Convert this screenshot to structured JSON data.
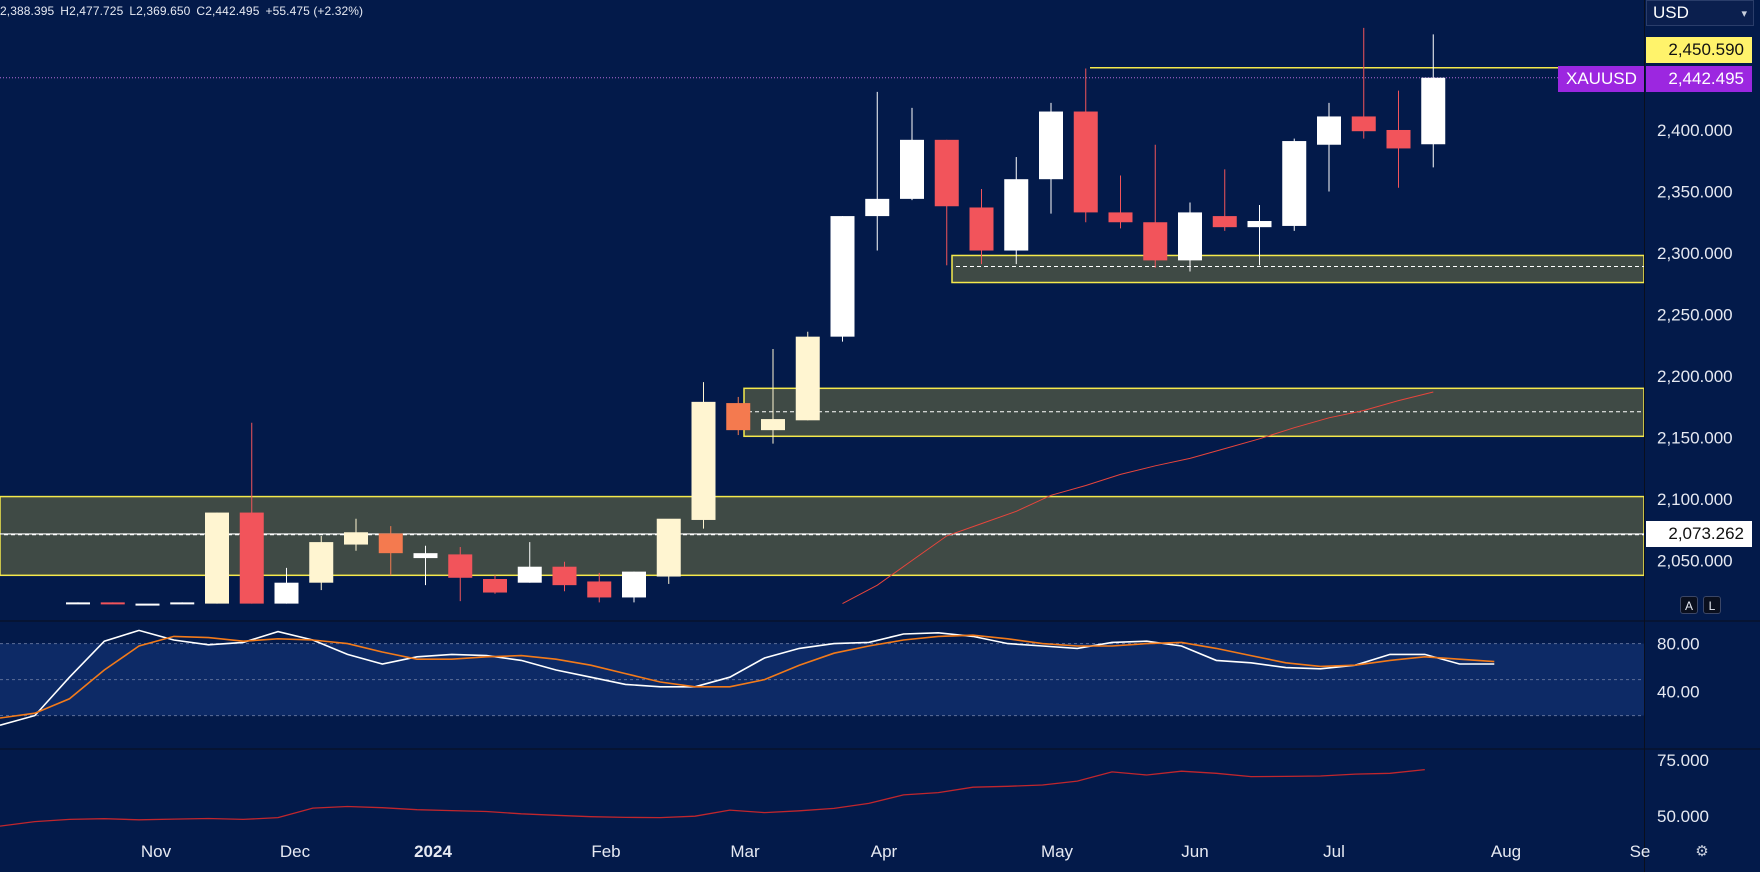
{
  "ohlc": {
    "open": "2,388.395",
    "high": "H2,477.725",
    "low": "L2,369.650",
    "close": "C2,442.495",
    "change": "+55.475 (+2.32%)"
  },
  "currency": {
    "selected": "USD"
  },
  "price_tags": {
    "resistance": "2,450.590",
    "symbol": "XAUUSD",
    "last": "2,442.495",
    "level": "2,073.262"
  },
  "axis_buttons": {
    "auto": "A",
    "log": "L"
  },
  "colors": {
    "background": "#031a4a",
    "up": "#ffffff",
    "up_highlight": "#fff5d1",
    "down": "#f2545b",
    "down_highlight": "#f47a4f",
    "zone_fill": "#3f4a45",
    "zone_border": "#f5e94c",
    "ma_line": "#e8453c",
    "stoch_k": "#ffffff",
    "stoch_d": "#f27a1a",
    "rsi_line": "#c0262d",
    "symbol_tag": "#9c27e0",
    "stoch_band": "#0d2a66"
  },
  "chart_data": [
    {
      "type": "candlestick",
      "timeframe": "weekly",
      "x_ticks": [
        "Nov",
        "Dec",
        "2024",
        "Feb",
        "Mar",
        "Apr",
        "May",
        "Jun",
        "Jul",
        "Aug",
        "Se"
      ],
      "y_ticks": [
        "2,050.000",
        "2,100.000",
        "2,150.000",
        "2,200.000",
        "2,250.000",
        "2,300.000",
        "2,350.000",
        "2,400.000"
      ],
      "ylim": [
        2015,
        2510
      ],
      "grid": false,
      "candles": [
        {
          "o": 2015,
          "h": 2016,
          "l": 2015,
          "c": 2016,
          "style": "up"
        },
        {
          "o": 2016,
          "h": 2016,
          "l": 2015,
          "c": 2015,
          "style": "down"
        },
        {
          "o": 2015,
          "h": 2015,
          "l": 2015,
          "c": 2015,
          "style": "up"
        },
        {
          "o": 2015,
          "h": 2016,
          "l": 2015,
          "c": 2016,
          "style": "up"
        },
        {
          "o": 2015,
          "h": 2089,
          "l": 2015,
          "c": 2089,
          "style": "hl_up"
        },
        {
          "o": 2089,
          "h": 2162,
          "l": 2015,
          "c": 2015,
          "style": "down"
        },
        {
          "o": 2015,
          "h": 2044,
          "l": 2015,
          "c": 2032,
          "style": "up"
        },
        {
          "o": 2032,
          "h": 2070,
          "l": 2026,
          "c": 2065,
          "style": "hl_up"
        },
        {
          "o": 2063,
          "h": 2084,
          "l": 2058,
          "c": 2073,
          "style": "hl_up"
        },
        {
          "o": 2072,
          "h": 2078,
          "l": 2038,
          "c": 2056,
          "style": "hl_down"
        },
        {
          "o": 2052,
          "h": 2062,
          "l": 2030,
          "c": 2056,
          "style": "up"
        },
        {
          "o": 2055,
          "h": 2061,
          "l": 2017,
          "c": 2036,
          "style": "down"
        },
        {
          "o": 2035,
          "h": 2038,
          "l": 2023,
          "c": 2024,
          "style": "down"
        },
        {
          "o": 2032,
          "h": 2065,
          "l": 2032,
          "c": 2045,
          "style": "up"
        },
        {
          "o": 2045,
          "h": 2049,
          "l": 2025,
          "c": 2030,
          "style": "down"
        },
        {
          "o": 2033,
          "h": 2040,
          "l": 2016,
          "c": 2020,
          "style": "down"
        },
        {
          "o": 2020,
          "h": 2041,
          "l": 2016,
          "c": 2041,
          "style": "up"
        },
        {
          "o": 2037,
          "h": 2081,
          "l": 2031,
          "c": 2084,
          "style": "hl_up"
        },
        {
          "o": 2083,
          "h": 2195,
          "l": 2076,
          "c": 2179,
          "style": "hl_up"
        },
        {
          "o": 2178,
          "h": 2183,
          "l": 2152,
          "c": 2156,
          "style": "hl_down"
        },
        {
          "o": 2156,
          "h": 2222,
          "l": 2145,
          "c": 2165,
          "style": "hl_up"
        },
        {
          "o": 2164,
          "h": 2236,
          "l": 2164,
          "c": 2232,
          "style": "hl_up"
        },
        {
          "o": 2232,
          "h": 2330,
          "l": 2228,
          "c": 2330,
          "style": "up"
        },
        {
          "o": 2330,
          "h": 2431,
          "l": 2302,
          "c": 2344,
          "style": "up"
        },
        {
          "o": 2344,
          "h": 2418,
          "l": 2343,
          "c": 2392,
          "style": "up"
        },
        {
          "o": 2392,
          "h": 2392,
          "l": 2290,
          "c": 2338,
          "style": "down"
        },
        {
          "o": 2337,
          "h": 2352,
          "l": 2291,
          "c": 2302,
          "style": "down"
        },
        {
          "o": 2302,
          "h": 2378,
          "l": 2291,
          "c": 2360,
          "style": "up"
        },
        {
          "o": 2360,
          "h": 2422,
          "l": 2332,
          "c": 2415,
          "style": "up"
        },
        {
          "o": 2415,
          "h": 2450,
          "l": 2325,
          "c": 2333,
          "style": "down"
        },
        {
          "o": 2333,
          "h": 2363,
          "l": 2320,
          "c": 2325,
          "style": "down"
        },
        {
          "o": 2325,
          "h": 2388,
          "l": 2288,
          "c": 2294,
          "style": "down"
        },
        {
          "o": 2294,
          "h": 2341,
          "l": 2285,
          "c": 2333,
          "style": "up"
        },
        {
          "o": 2330,
          "h": 2368,
          "l": 2318,
          "c": 2321,
          "style": "down"
        },
        {
          "o": 2321,
          "h": 2339,
          "l": 2290,
          "c": 2326,
          "style": "up"
        },
        {
          "o": 2322,
          "h": 2393,
          "l": 2318,
          "c": 2391,
          "style": "up"
        },
        {
          "o": 2388,
          "h": 2422,
          "l": 2350,
          "c": 2411,
          "style": "up"
        },
        {
          "o": 2411,
          "h": 2483,
          "l": 2393,
          "c": 2399,
          "style": "down"
        },
        {
          "o": 2400,
          "h": 2432,
          "l": 2353,
          "c": 2385,
          "style": "down"
        },
        {
          "o": 2388.395,
          "h": 2477.725,
          "l": 2369.65,
          "c": 2442.495,
          "style": "up"
        }
      ],
      "moving_average": {
        "start_index": 22,
        "values": [
          2015,
          2030,
          2050,
          2070,
          2080,
          2090,
          2103,
          2111,
          2120,
          2127,
          2133,
          2141,
          2149,
          2158,
          2166,
          2172,
          2180,
          2187
        ]
      },
      "zones": [
        {
          "top": 2298,
          "bottom": 2276,
          "mid": 2289
        },
        {
          "top": 2190,
          "bottom": 2151,
          "mid": 2171
        },
        {
          "top": 2102,
          "bottom": 2038,
          "mid": 2071
        }
      ],
      "resistance_line": 2450.59,
      "last_price_line": 2442.495,
      "level_line": 2073.262
    },
    {
      "type": "line",
      "name_hint": "stochastic oscillator",
      "y_ticks": [
        "80.00",
        "40.00"
      ],
      "ylim": [
        0,
        100
      ],
      "bands": [
        20,
        50,
        80
      ],
      "start_index": 5,
      "series": [
        {
          "values": [
            12,
            20,
            52,
            82,
            91,
            83,
            79,
            81,
            90,
            83,
            71,
            63,
            69,
            71,
            70,
            66,
            58,
            52,
            46,
            44,
            44,
            52,
            68,
            76,
            80,
            81,
            88,
            89,
            86,
            80,
            78,
            76,
            81,
            82,
            78,
            66,
            64,
            60,
            59,
            62,
            71,
            71,
            63,
            63
          ],
          "style": "k"
        },
        {
          "values": [
            18,
            22,
            34,
            58,
            78,
            86,
            85,
            82,
            84,
            83,
            80,
            73,
            67,
            67,
            69,
            70,
            67,
            62,
            55,
            48,
            44,
            44,
            50,
            62,
            72,
            78,
            83,
            86,
            87,
            84,
            80,
            78,
            78,
            80,
            81,
            76,
            70,
            64,
            61,
            62,
            66,
            69,
            67,
            65
          ],
          "style": "d"
        }
      ]
    },
    {
      "type": "line",
      "name_hint": "lower oscillator",
      "y_ticks": [
        "75.000",
        "50.000"
      ],
      "ylim": [
        44,
        78
      ],
      "start_index": 5,
      "series": [
        {
          "values": [
            45.5,
            47.5,
            48.5,
            48.8,
            48.3,
            48.6,
            48.9,
            48.5,
            49.3,
            53.5,
            54.2,
            53.7,
            52.8,
            52.4,
            52.0,
            51.0,
            50.3,
            49.7,
            49.4,
            49.3,
            49.9,
            52.6,
            51.5,
            52.3,
            53.4,
            55.6,
            59.4,
            60.4,
            62.8,
            63.2,
            63.8,
            65.5,
            69.6,
            68.2,
            69.9,
            69.0,
            67.5,
            67.6,
            67.8,
            68.6,
            69.0,
            70.6
          ],
          "style": "rsi"
        }
      ]
    }
  ]
}
